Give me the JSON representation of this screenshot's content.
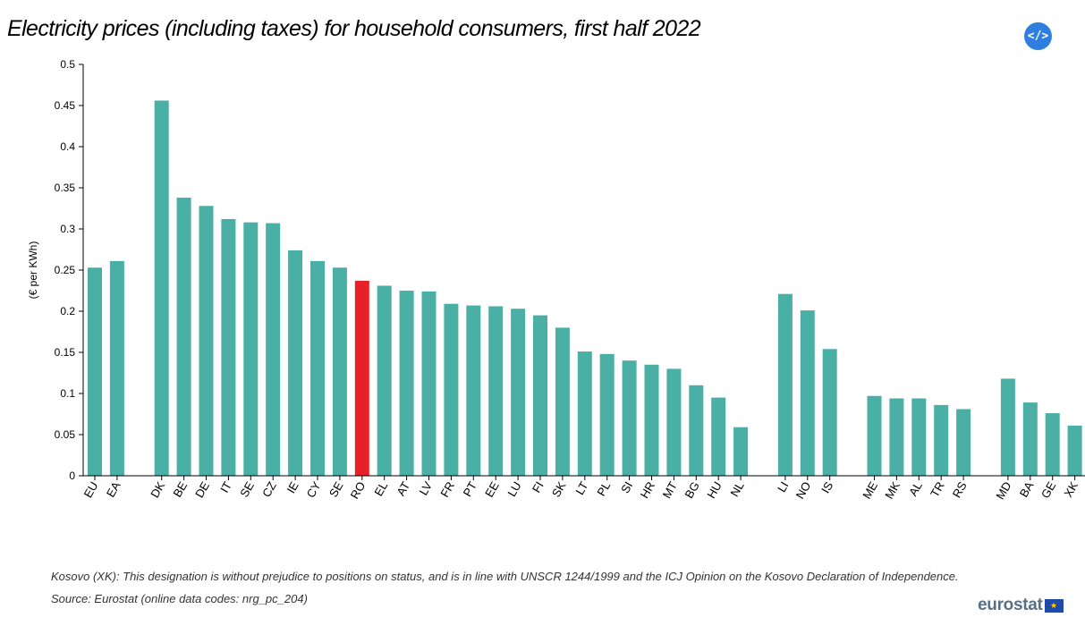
{
  "title": "Electricity prices (including taxes) for household consumers, first half 2022",
  "embed_icon": "code-icon",
  "embed_label": "</>",
  "footnote": "Kosovo (XK): This designation is without prejudice to positions on status, and is in line with UNSCR 1244/1999 and the ICJ Opinion on the Kosovo Declaration of Independence.",
  "source": "Source: Eurostat (online data codes: nrg_pc_204)",
  "logo_text": "eurostat",
  "flag_stars": "★",
  "colors": {
    "bar": "#4aafa5",
    "highlight": "#e8202a",
    "axis": "#000000"
  },
  "chart_data": {
    "type": "bar",
    "title": "Electricity prices (including taxes) for household consumers, first half 2022",
    "ylabel": "(€ per KWh)",
    "xlabel": "",
    "ylim": [
      0,
      0.5
    ],
    "yticks": [
      "0",
      "0.05",
      "0.1",
      "0.15",
      "0.2",
      "0.25",
      "0.3",
      "0.35",
      "0.4",
      "0.45",
      "0.5"
    ],
    "grid": false,
    "groups": [
      {
        "categories": [
          "EU",
          "EA"
        ],
        "values": [
          0.253,
          0.261
        ]
      },
      {
        "categories": [
          "DK",
          "BE",
          "DE",
          "IT",
          "SE",
          "CZ",
          "IE",
          "CY",
          "SE",
          "RO",
          "EL",
          "AT",
          "LV",
          "FR",
          "PT",
          "EE",
          "LU",
          "FI",
          "SK",
          "LT",
          "PL",
          "SI",
          "HR",
          "MT",
          "BG",
          "HU",
          "NL"
        ],
        "values": [
          0.456,
          0.338,
          0.328,
          0.312,
          0.308,
          0.307,
          0.274,
          0.261,
          0.253,
          0.237,
          0.231,
          0.225,
          0.224,
          0.209,
          0.207,
          0.206,
          0.203,
          0.195,
          0.18,
          0.151,
          0.148,
          0.14,
          0.135,
          0.13,
          0.11,
          0.095,
          0.059
        ]
      },
      {
        "categories": [
          "LI",
          "NO",
          "IS"
        ],
        "values": [
          0.221,
          0.201,
          0.154
        ]
      },
      {
        "categories": [
          "ME",
          "MK",
          "AL",
          "TR",
          "RS"
        ],
        "values": [
          0.097,
          0.094,
          0.094,
          0.086,
          0.081
        ]
      },
      {
        "categories": [
          "MD",
          "BA",
          "GE",
          "XK"
        ],
        "values": [
          0.118,
          0.089,
          0.076,
          0.061
        ]
      }
    ],
    "highlighted": "RO"
  }
}
